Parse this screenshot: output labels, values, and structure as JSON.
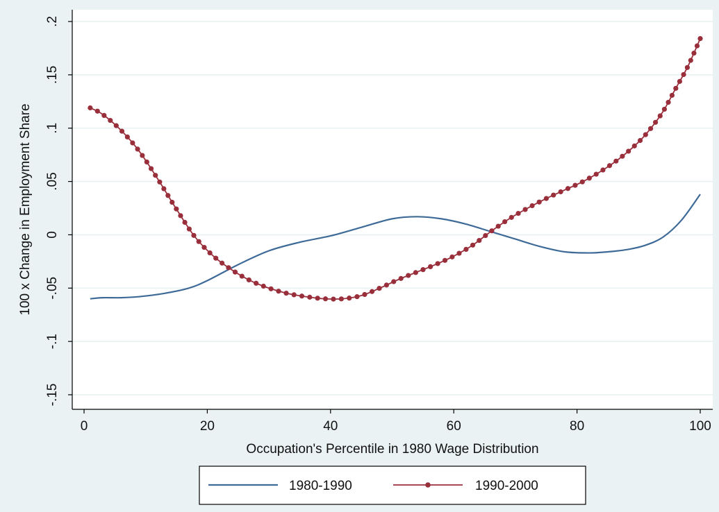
{
  "chart_data": {
    "type": "line",
    "title": "",
    "xlabel": "Occupation's Percentile in 1980 Wage Distribution",
    "ylabel": "100 x Change in Employment Share",
    "xlim": [
      0,
      100
    ],
    "ylim": [
      -0.16,
      0.2
    ],
    "x_ticks": [
      0,
      20,
      40,
      60,
      80,
      100
    ],
    "x_tick_labels": [
      "0",
      "20",
      "40",
      "60",
      "80",
      "100"
    ],
    "y_ticks": [
      -0.15,
      -0.1,
      -0.05,
      0,
      0.05,
      0.1,
      0.15,
      0.2
    ],
    "y_tick_labels": [
      "-.15",
      "-.1",
      "-.05",
      "0",
      ".05",
      ".1",
      ".15",
      ".2"
    ],
    "grid": true,
    "legend_position": "bottom",
    "series": [
      {
        "name": "1980-1990",
        "color": "#3e6a98",
        "marker": "none",
        "x": [
          1,
          3,
          6,
          9,
          13,
          17,
          20,
          25,
          30,
          35,
          40,
          45,
          50,
          54,
          58,
          62,
          66,
          70,
          74,
          78,
          82,
          85,
          88,
          91,
          94,
          97,
          100
        ],
        "y": [
          -0.06,
          -0.059,
          -0.059,
          -0.058,
          -0.055,
          -0.05,
          -0.043,
          -0.028,
          -0.015,
          -0.007,
          -0.001,
          0.007,
          0.015,
          0.017,
          0.015,
          0.01,
          0.003,
          -0.004,
          -0.011,
          -0.016,
          -0.017,
          -0.016,
          -0.014,
          -0.01,
          -0.002,
          0.014,
          0.038
        ]
      },
      {
        "name": "1990-2000",
        "color": "#9a2f3c",
        "marker": "dot",
        "x": [
          1,
          3,
          6,
          9,
          12,
          15,
          18,
          21,
          24,
          27,
          30,
          33,
          36,
          39,
          42,
          45,
          48,
          51,
          54,
          57,
          60,
          63,
          66,
          69,
          72,
          75,
          78,
          81,
          84,
          87,
          90,
          92,
          94,
          96,
          98,
          100
        ],
        "y": [
          0.119,
          0.113,
          0.098,
          0.078,
          0.052,
          0.024,
          -0.002,
          -0.02,
          -0.033,
          -0.043,
          -0.05,
          -0.055,
          -0.058,
          -0.06,
          -0.06,
          -0.057,
          -0.05,
          -0.042,
          -0.035,
          -0.028,
          -0.02,
          -0.01,
          0.003,
          0.015,
          0.025,
          0.034,
          0.042,
          0.05,
          0.06,
          0.072,
          0.087,
          0.1,
          0.116,
          0.137,
          0.158,
          0.184
        ]
      }
    ]
  }
}
